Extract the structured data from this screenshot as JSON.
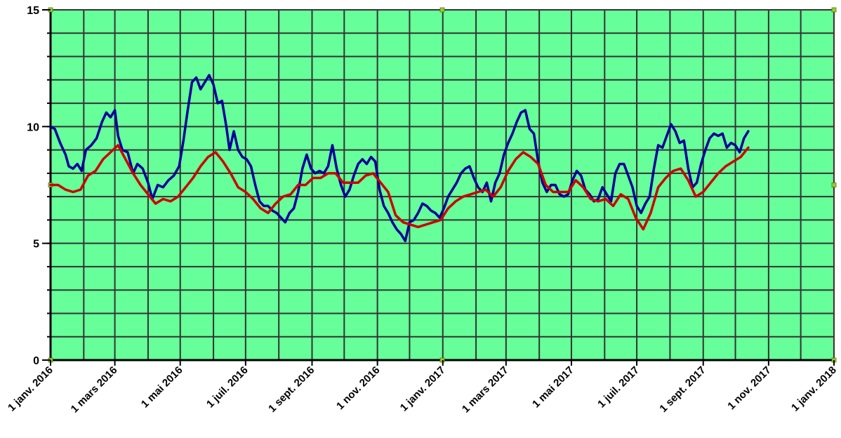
{
  "chart_data": {
    "type": "line",
    "title": "",
    "xlabel": "",
    "ylabel": "",
    "ylim": [
      0,
      15
    ],
    "xlim": [
      "2016-01-01",
      "2018-01-01"
    ],
    "yticks": [
      0,
      5,
      10,
      15
    ],
    "y_tick_labels": [
      "0",
      "5",
      "10",
      "15"
    ],
    "xticks": [
      "2016-01-01",
      "2016-03-01",
      "2016-05-01",
      "2016-07-01",
      "2016-09-01",
      "2016-11-01",
      "2017-01-01",
      "2017-03-01",
      "2017-05-01",
      "2017-07-01",
      "2017-09-01",
      "2017-11-01",
      "2018-01-01"
    ],
    "x_tick_labels": [
      "1 janv. 2016",
      "1 mars 2016",
      "1 mai 2016",
      "1 juil. 2016",
      "1 sept. 2016",
      "1 nov. 2016",
      "1 janv. 2017",
      "1 mars 2017",
      "1 mai 2017",
      "1 juil. 2017",
      "1 sept. 2017",
      "1 nov. 2017",
      "1 janv. 2018"
    ],
    "grid": true,
    "background": "#66ff99",
    "series": [
      {
        "color": "#000099",
        "points": [
          [
            "2016-01-01",
            10.0
          ],
          [
            "2016-01-05",
            9.9
          ],
          [
            "2016-01-10",
            9.3
          ],
          [
            "2016-01-15",
            8.8
          ],
          [
            "2016-01-18",
            8.3
          ],
          [
            "2016-01-22",
            8.2
          ],
          [
            "2016-01-26",
            8.4
          ],
          [
            "2016-01-30",
            8.1
          ],
          [
            "2016-02-03",
            9.0
          ],
          [
            "2016-02-08",
            9.2
          ],
          [
            "2016-02-13",
            9.5
          ],
          [
            "2016-02-18",
            10.2
          ],
          [
            "2016-02-22",
            10.6
          ],
          [
            "2016-02-26",
            10.4
          ],
          [
            "2016-03-01",
            10.7
          ],
          [
            "2016-03-04",
            9.6
          ],
          [
            "2016-03-08",
            9.0
          ],
          [
            "2016-03-13",
            8.9
          ],
          [
            "2016-03-18",
            8.0
          ],
          [
            "2016-03-22",
            8.4
          ],
          [
            "2016-03-27",
            8.2
          ],
          [
            "2016-04-01",
            7.6
          ],
          [
            "2016-04-05",
            6.9
          ],
          [
            "2016-04-10",
            7.5
          ],
          [
            "2016-04-15",
            7.4
          ],
          [
            "2016-04-20",
            7.7
          ],
          [
            "2016-04-25",
            7.9
          ],
          [
            "2016-04-30",
            8.3
          ],
          [
            "2016-05-04",
            9.4
          ],
          [
            "2016-05-08",
            10.7
          ],
          [
            "2016-05-12",
            11.9
          ],
          [
            "2016-05-16",
            12.1
          ],
          [
            "2016-05-20",
            11.6
          ],
          [
            "2016-05-24",
            11.9
          ],
          [
            "2016-05-28",
            12.2
          ],
          [
            "2016-06-01",
            11.8
          ],
          [
            "2016-06-05",
            11.0
          ],
          [
            "2016-06-09",
            11.1
          ],
          [
            "2016-06-13",
            10.0
          ],
          [
            "2016-06-16",
            9.0
          ],
          [
            "2016-06-20",
            9.8
          ],
          [
            "2016-06-24",
            9.0
          ],
          [
            "2016-06-28",
            8.7
          ],
          [
            "2016-07-02",
            8.6
          ],
          [
            "2016-07-06",
            8.3
          ],
          [
            "2016-07-10",
            7.5
          ],
          [
            "2016-07-14",
            6.8
          ],
          [
            "2016-07-18",
            6.6
          ],
          [
            "2016-07-22",
            6.6
          ],
          [
            "2016-07-26",
            6.4
          ],
          [
            "2016-07-30",
            6.3
          ],
          [
            "2016-08-03",
            6.1
          ],
          [
            "2016-08-07",
            5.9
          ],
          [
            "2016-08-11",
            6.3
          ],
          [
            "2016-08-15",
            6.5
          ],
          [
            "2016-08-19",
            7.2
          ],
          [
            "2016-08-23",
            8.2
          ],
          [
            "2016-08-27",
            8.8
          ],
          [
            "2016-08-31",
            8.2
          ],
          [
            "2016-09-04",
            8.0
          ],
          [
            "2016-09-08",
            8.1
          ],
          [
            "2016-09-12",
            8.0
          ],
          [
            "2016-09-16",
            8.3
          ],
          [
            "2016-09-20",
            9.2
          ],
          [
            "2016-09-24",
            8.2
          ],
          [
            "2016-09-28",
            7.5
          ],
          [
            "2016-10-02",
            7.0
          ],
          [
            "2016-10-06",
            7.3
          ],
          [
            "2016-10-10",
            7.9
          ],
          [
            "2016-10-14",
            8.4
          ],
          [
            "2016-10-18",
            8.6
          ],
          [
            "2016-10-22",
            8.4
          ],
          [
            "2016-10-26",
            8.7
          ],
          [
            "2016-10-30",
            8.5
          ],
          [
            "2016-11-03",
            7.3
          ],
          [
            "2016-11-07",
            6.6
          ],
          [
            "2016-11-11",
            6.3
          ],
          [
            "2016-11-15",
            5.9
          ],
          [
            "2016-11-19",
            5.6
          ],
          [
            "2016-11-23",
            5.4
          ],
          [
            "2016-11-27",
            5.1
          ],
          [
            "2016-12-01",
            5.9
          ],
          [
            "2016-12-05",
            6.0
          ],
          [
            "2016-12-09",
            6.3
          ],
          [
            "2016-12-13",
            6.7
          ],
          [
            "2016-12-17",
            6.6
          ],
          [
            "2016-12-21",
            6.4
          ],
          [
            "2016-12-25",
            6.3
          ],
          [
            "2016-12-29",
            6.1
          ],
          [
            "2017-01-02",
            6.5
          ],
          [
            "2017-01-06",
            7.0
          ],
          [
            "2017-01-10",
            7.3
          ],
          [
            "2017-01-14",
            7.6
          ],
          [
            "2017-01-18",
            8.0
          ],
          [
            "2017-01-22",
            8.2
          ],
          [
            "2017-01-26",
            8.3
          ],
          [
            "2017-01-30",
            7.8
          ],
          [
            "2017-02-03",
            7.4
          ],
          [
            "2017-02-07",
            7.2
          ],
          [
            "2017-02-11",
            7.6
          ],
          [
            "2017-02-15",
            6.8
          ],
          [
            "2017-02-19",
            7.6
          ],
          [
            "2017-02-23",
            8.0
          ],
          [
            "2017-02-27",
            8.8
          ],
          [
            "2017-03-03",
            9.3
          ],
          [
            "2017-03-07",
            9.7
          ],
          [
            "2017-03-11",
            10.2
          ],
          [
            "2017-03-15",
            10.6
          ],
          [
            "2017-03-19",
            10.7
          ],
          [
            "2017-03-23",
            9.9
          ],
          [
            "2017-03-27",
            9.7
          ],
          [
            "2017-03-31",
            8.5
          ],
          [
            "2017-04-04",
            7.6
          ],
          [
            "2017-04-08",
            7.2
          ],
          [
            "2017-04-12",
            7.5
          ],
          [
            "2017-04-16",
            7.5
          ],
          [
            "2017-04-20",
            7.1
          ],
          [
            "2017-04-24",
            7.0
          ],
          [
            "2017-04-28",
            7.1
          ],
          [
            "2017-05-02",
            7.7
          ],
          [
            "2017-05-06",
            8.1
          ],
          [
            "2017-05-10",
            7.9
          ],
          [
            "2017-05-14",
            7.3
          ],
          [
            "2017-05-18",
            7.1
          ],
          [
            "2017-05-22",
            6.8
          ],
          [
            "2017-05-26",
            6.9
          ],
          [
            "2017-05-30",
            7.4
          ],
          [
            "2017-06-03",
            7.1
          ],
          [
            "2017-06-07",
            6.8
          ],
          [
            "2017-06-11",
            8.0
          ],
          [
            "2017-06-15",
            8.4
          ],
          [
            "2017-06-19",
            8.4
          ],
          [
            "2017-06-23",
            7.9
          ],
          [
            "2017-06-27",
            7.4
          ],
          [
            "2017-07-01",
            6.6
          ],
          [
            "2017-07-05",
            6.3
          ],
          [
            "2017-07-09",
            6.7
          ],
          [
            "2017-07-13",
            7.0
          ],
          [
            "2017-07-17",
            8.2
          ],
          [
            "2017-07-21",
            9.2
          ],
          [
            "2017-07-25",
            9.1
          ],
          [
            "2017-07-29",
            9.6
          ],
          [
            "2017-08-02",
            10.1
          ],
          [
            "2017-08-06",
            9.8
          ],
          [
            "2017-08-10",
            9.3
          ],
          [
            "2017-08-14",
            9.4
          ],
          [
            "2017-08-18",
            8.2
          ],
          [
            "2017-08-22",
            7.4
          ],
          [
            "2017-08-26",
            7.6
          ],
          [
            "2017-08-30",
            8.4
          ],
          [
            "2017-09-03",
            9.0
          ],
          [
            "2017-09-07",
            9.5
          ],
          [
            "2017-09-11",
            9.7
          ],
          [
            "2017-09-15",
            9.6
          ],
          [
            "2017-09-19",
            9.7
          ],
          [
            "2017-09-23",
            9.1
          ],
          [
            "2017-09-27",
            9.3
          ],
          [
            "2017-10-01",
            9.2
          ],
          [
            "2017-10-05",
            8.9
          ],
          [
            "2017-10-09",
            9.5
          ],
          [
            "2017-10-13",
            9.8
          ]
        ]
      },
      {
        "color": "#cc0000",
        "points": [
          [
            "2016-01-01",
            7.5
          ],
          [
            "2016-01-08",
            7.5
          ],
          [
            "2016-01-15",
            7.3
          ],
          [
            "2016-01-22",
            7.2
          ],
          [
            "2016-01-29",
            7.3
          ],
          [
            "2016-02-05",
            7.9
          ],
          [
            "2016-02-12",
            8.1
          ],
          [
            "2016-02-19",
            8.6
          ],
          [
            "2016-02-26",
            8.9
          ],
          [
            "2016-03-04",
            9.2
          ],
          [
            "2016-03-11",
            8.6
          ],
          [
            "2016-03-18",
            8.0
          ],
          [
            "2016-03-25",
            7.5
          ],
          [
            "2016-04-01",
            7.1
          ],
          [
            "2016-04-08",
            6.7
          ],
          [
            "2016-04-15",
            6.9
          ],
          [
            "2016-04-22",
            6.8
          ],
          [
            "2016-04-29",
            7.0
          ],
          [
            "2016-05-06",
            7.4
          ],
          [
            "2016-05-13",
            7.8
          ],
          [
            "2016-05-20",
            8.3
          ],
          [
            "2016-05-27",
            8.7
          ],
          [
            "2016-06-03",
            8.9
          ],
          [
            "2016-06-10",
            8.5
          ],
          [
            "2016-06-17",
            8.0
          ],
          [
            "2016-06-24",
            7.4
          ],
          [
            "2016-07-01",
            7.2
          ],
          [
            "2016-07-08",
            6.9
          ],
          [
            "2016-07-15",
            6.5
          ],
          [
            "2016-07-22",
            6.3
          ],
          [
            "2016-07-29",
            6.7
          ],
          [
            "2016-08-05",
            7.0
          ],
          [
            "2016-08-12",
            7.1
          ],
          [
            "2016-08-19",
            7.5
          ],
          [
            "2016-08-26",
            7.5
          ],
          [
            "2016-09-02",
            7.8
          ],
          [
            "2016-09-09",
            7.8
          ],
          [
            "2016-09-16",
            8.0
          ],
          [
            "2016-09-23",
            8.0
          ],
          [
            "2016-09-30",
            7.6
          ],
          [
            "2016-10-07",
            7.6
          ],
          [
            "2016-10-14",
            7.6
          ],
          [
            "2016-10-21",
            7.9
          ],
          [
            "2016-10-28",
            8.0
          ],
          [
            "2016-11-04",
            7.6
          ],
          [
            "2016-11-11",
            7.2
          ],
          [
            "2016-11-18",
            6.2
          ],
          [
            "2016-11-25",
            5.9
          ],
          [
            "2016-12-02",
            5.8
          ],
          [
            "2016-12-09",
            5.7
          ],
          [
            "2016-12-16",
            5.8
          ],
          [
            "2016-12-23",
            5.9
          ],
          [
            "2016-12-30",
            6.0
          ],
          [
            "2017-01-06",
            6.5
          ],
          [
            "2017-01-13",
            6.8
          ],
          [
            "2017-01-20",
            7.0
          ],
          [
            "2017-01-27",
            7.1
          ],
          [
            "2017-02-03",
            7.2
          ],
          [
            "2017-02-10",
            7.3
          ],
          [
            "2017-02-17",
            7.0
          ],
          [
            "2017-02-24",
            7.4
          ],
          [
            "2017-03-03",
            8.1
          ],
          [
            "2017-03-10",
            8.6
          ],
          [
            "2017-03-17",
            8.9
          ],
          [
            "2017-03-24",
            8.7
          ],
          [
            "2017-03-31",
            8.4
          ],
          [
            "2017-04-07",
            7.5
          ],
          [
            "2017-04-14",
            7.2
          ],
          [
            "2017-04-21",
            7.2
          ],
          [
            "2017-04-28",
            7.2
          ],
          [
            "2017-05-05",
            7.7
          ],
          [
            "2017-05-12",
            7.4
          ],
          [
            "2017-05-19",
            6.9
          ],
          [
            "2017-05-26",
            6.8
          ],
          [
            "2017-06-02",
            6.9
          ],
          [
            "2017-06-09",
            6.6
          ],
          [
            "2017-06-16",
            7.1
          ],
          [
            "2017-06-23",
            6.9
          ],
          [
            "2017-06-30",
            6.1
          ],
          [
            "2017-07-07",
            5.6
          ],
          [
            "2017-07-14",
            6.3
          ],
          [
            "2017-07-21",
            7.4
          ],
          [
            "2017-07-28",
            7.8
          ],
          [
            "2017-08-04",
            8.1
          ],
          [
            "2017-08-11",
            8.2
          ],
          [
            "2017-08-18",
            7.7
          ],
          [
            "2017-08-25",
            7.0
          ],
          [
            "2017-09-01",
            7.2
          ],
          [
            "2017-09-08",
            7.6
          ],
          [
            "2017-09-15",
            8.0
          ],
          [
            "2017-09-22",
            8.3
          ],
          [
            "2017-09-29",
            8.5
          ],
          [
            "2017-10-06",
            8.7
          ],
          [
            "2017-10-13",
            9.1
          ]
        ]
      }
    ]
  }
}
